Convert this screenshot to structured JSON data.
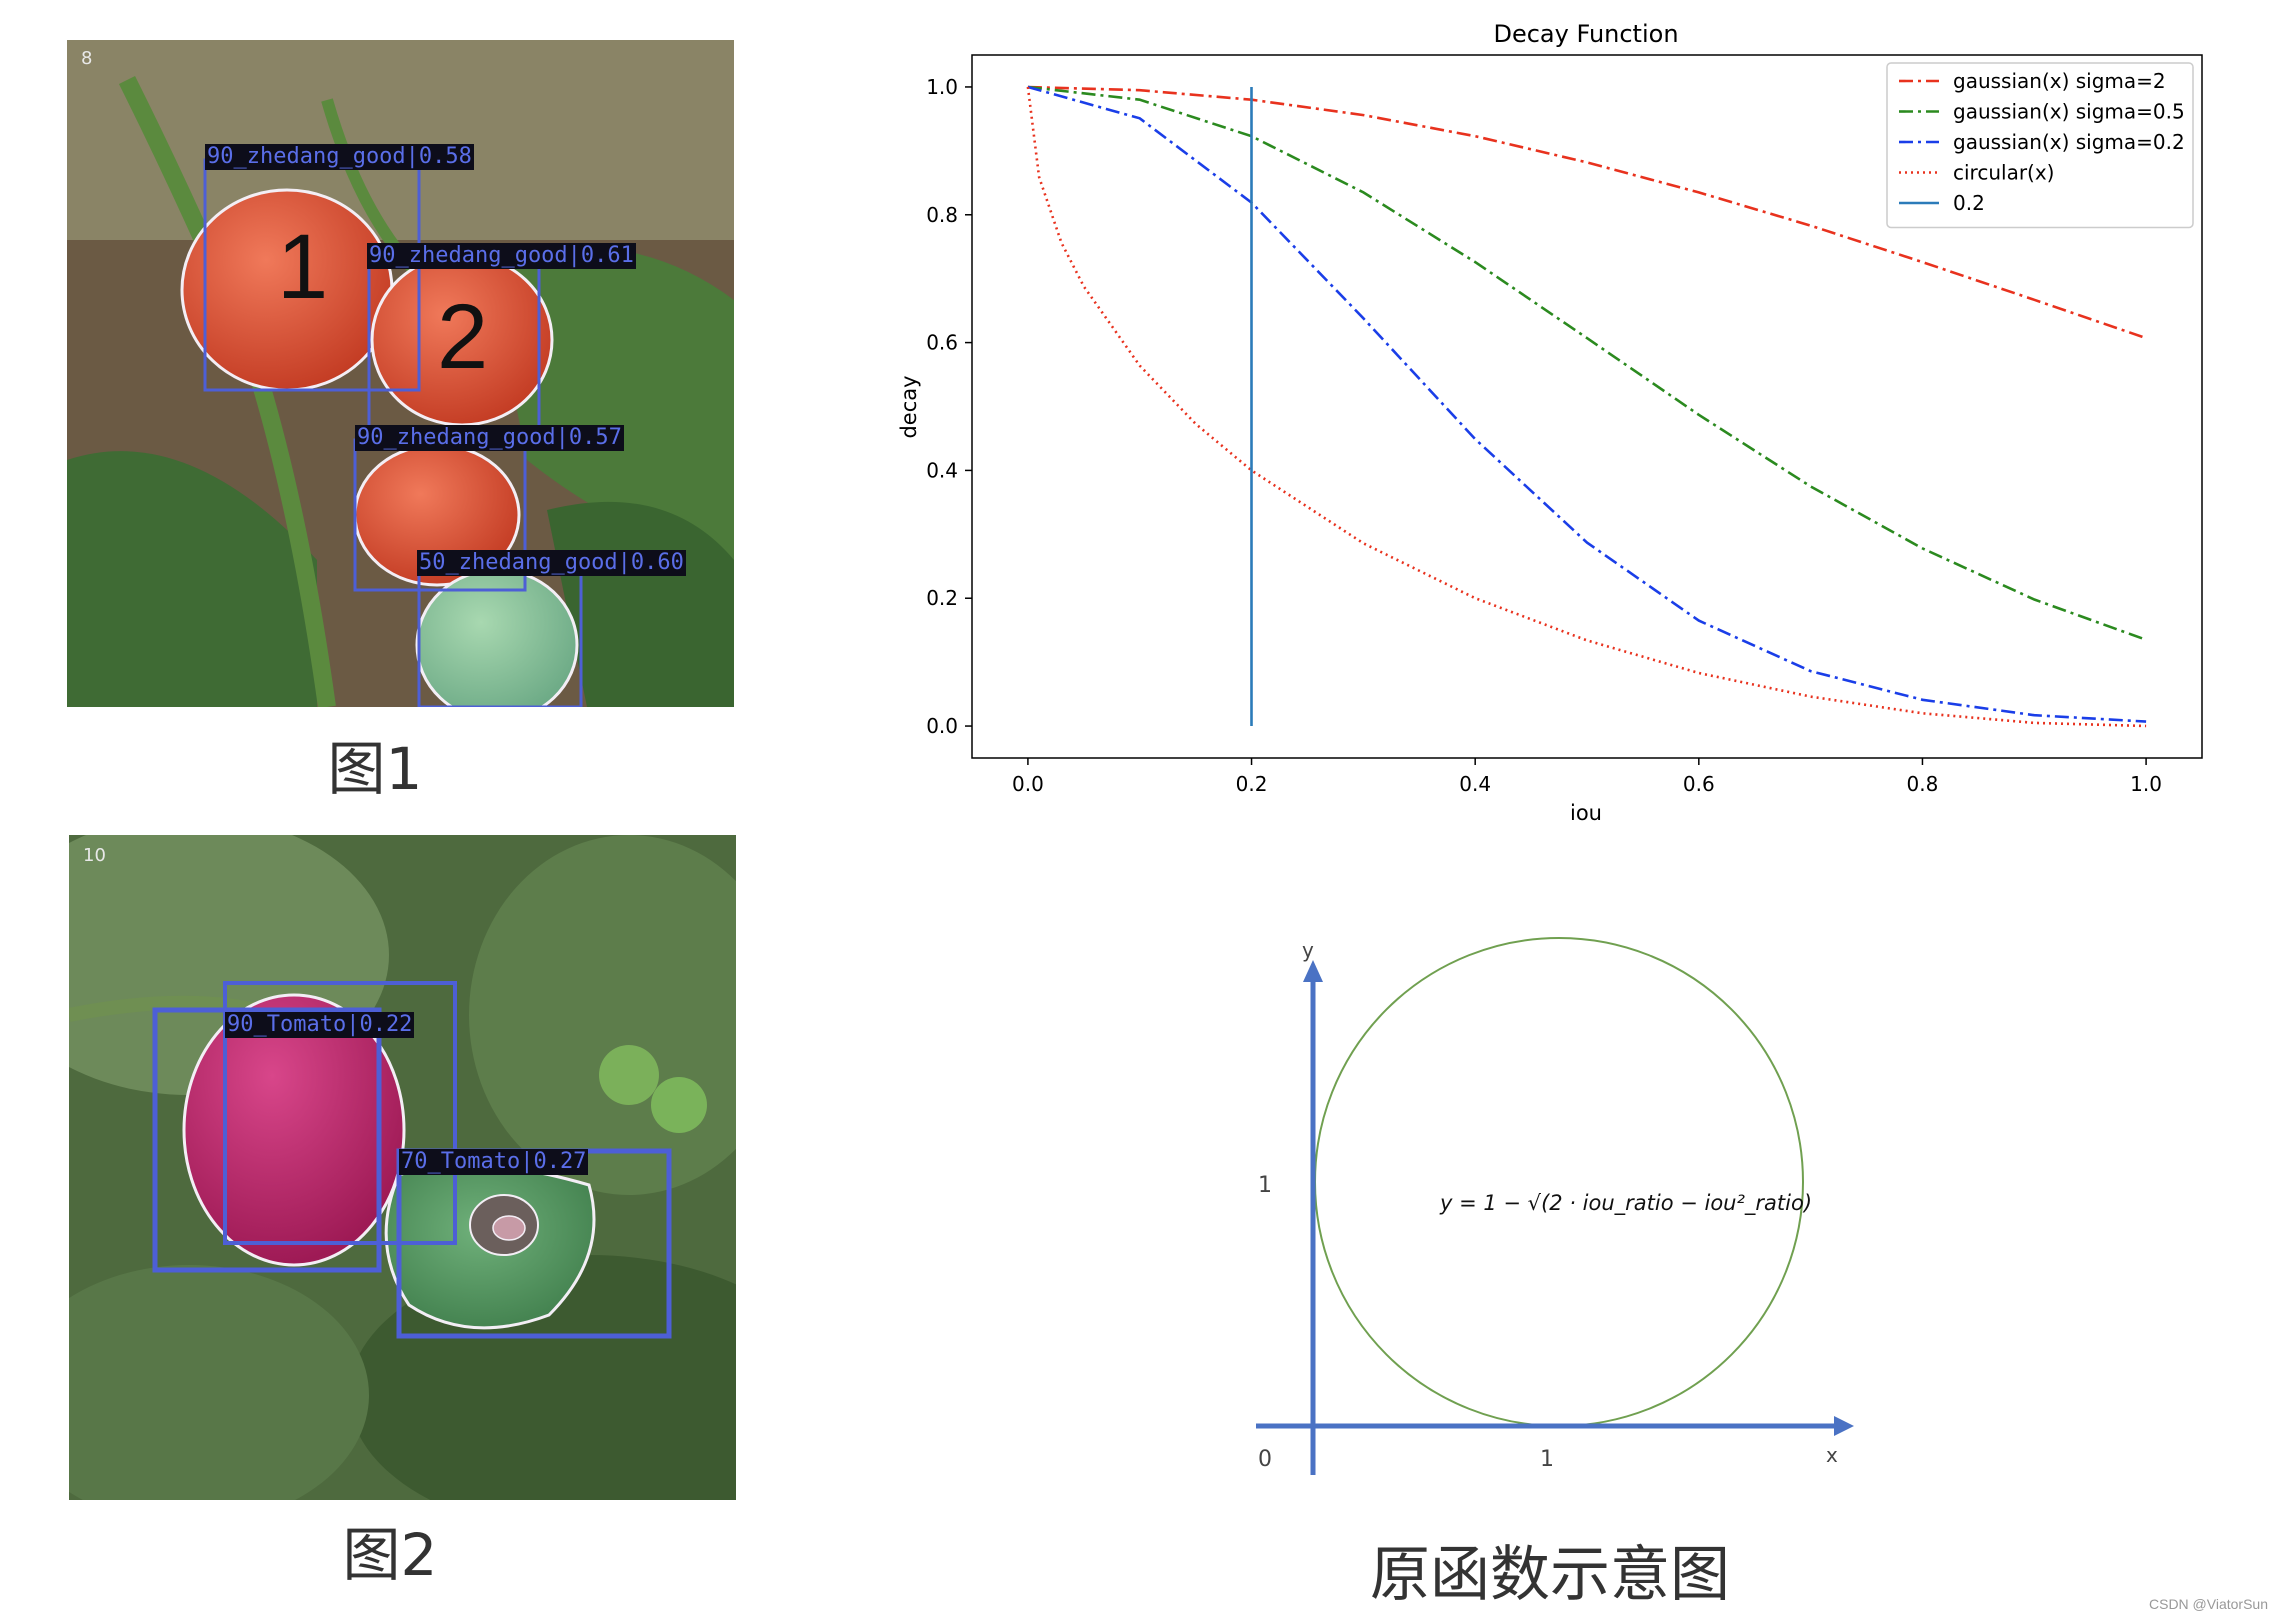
{
  "figure1": {
    "frame_id": "8",
    "caption": "图1",
    "digits": [
      "1",
      "2"
    ],
    "detections": [
      {
        "label": "90_zhedang_good|0.58"
      },
      {
        "label": "90_zhedang_good|0.61"
      },
      {
        "label": "90_zhedang_good|0.57"
      },
      {
        "label": "50_zhedang_good|0.60"
      }
    ]
  },
  "figure2": {
    "frame_id": "10",
    "caption": "图2",
    "detections": [
      {
        "label": "90_Tomato|0.22"
      },
      {
        "label": "70_Tomato|0.27"
      }
    ]
  },
  "chart_data": {
    "type": "line",
    "title": "Decay Function",
    "xlabel": "iou",
    "ylabel": "decay",
    "xlim": [
      -0.05,
      1.05
    ],
    "ylim": [
      -0.05,
      1.05
    ],
    "xticks": [
      "0.0",
      "0.2",
      "0.4",
      "0.6",
      "0.8",
      "1.0"
    ],
    "yticks": [
      "0.0",
      "0.2",
      "0.4",
      "0.6",
      "0.8",
      "1.0"
    ],
    "legend_position": "top-right",
    "grid": false,
    "series": [
      {
        "name": "gaussian(x) sigma=2",
        "color": "#e8321e",
        "style": "dashdot",
        "x": [
          0,
          0.1,
          0.2,
          0.3,
          0.4,
          0.5,
          0.6,
          0.7,
          0.8,
          0.9,
          1.0
        ],
        "values": [
          1.0,
          0.995,
          0.98,
          0.956,
          0.923,
          0.882,
          0.835,
          0.783,
          0.726,
          0.667,
          0.607
        ]
      },
      {
        "name": "gaussian(x) sigma=0.5",
        "color": "#2b8a1f",
        "style": "dashdot",
        "x": [
          0,
          0.1,
          0.2,
          0.3,
          0.4,
          0.5,
          0.6,
          0.7,
          0.8,
          0.9,
          1.0
        ],
        "values": [
          1.0,
          0.98,
          0.923,
          0.835,
          0.726,
          0.607,
          0.487,
          0.375,
          0.278,
          0.198,
          0.135
        ]
      },
      {
        "name": "gaussian(x) sigma=0.2",
        "color": "#1a3ee8",
        "style": "dashdot",
        "x": [
          0,
          0.1,
          0.2,
          0.3,
          0.4,
          0.5,
          0.6,
          0.7,
          0.8,
          0.9,
          1.0
        ],
        "values": [
          1.0,
          0.951,
          0.819,
          0.638,
          0.449,
          0.287,
          0.165,
          0.086,
          0.041,
          0.017,
          0.007
        ]
      },
      {
        "name": "circular(x)",
        "color": "#e8321e",
        "style": "dotted",
        "x": [
          0,
          0.01,
          0.03,
          0.05,
          0.1,
          0.15,
          0.2,
          0.3,
          0.4,
          0.5,
          0.6,
          0.7,
          0.8,
          0.9,
          1.0
        ],
        "values": [
          1.0,
          0.859,
          0.756,
          0.688,
          0.564,
          0.473,
          0.4,
          0.286,
          0.2,
          0.134,
          0.083,
          0.046,
          0.02,
          0.005,
          0.0
        ]
      },
      {
        "name": "0.2",
        "color": "#2b7bb9",
        "style": "solid",
        "x": [
          0.2,
          0.2
        ],
        "values": [
          0.0,
          1.0
        ]
      }
    ]
  },
  "diagram": {
    "axis_x_label": "x",
    "axis_y_label": "y",
    "origin_label": "0",
    "tick_x_label": "1",
    "tick_y_label": "1",
    "formula": "y = 1 − √(2 · iou_ratio − iou²_ratio)",
    "caption": "原函数示意图"
  },
  "watermark": "CSDN @ViatorSun"
}
